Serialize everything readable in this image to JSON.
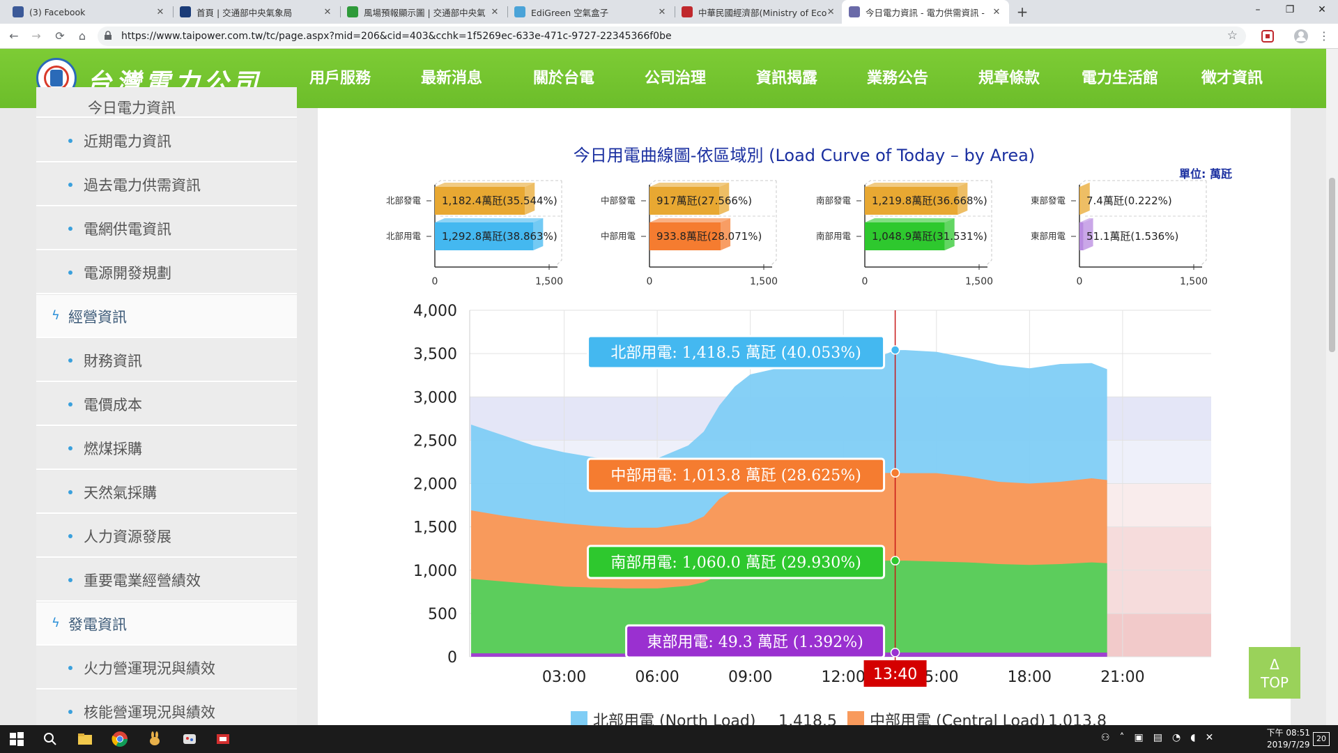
{
  "browser": {
    "tabs": [
      {
        "title": "(3) Facebook",
        "favicon_color": "#3b5998"
      },
      {
        "title": "首頁 | 交通部中央氣象局",
        "favicon_color": "#1a3b78"
      },
      {
        "title": "風場預報顯示圖 | 交通部中央氣",
        "favicon_color": "#2e9a3a"
      },
      {
        "title": "EdiGreen 空氣盒子",
        "favicon_color": "#4aa3d8"
      },
      {
        "title": "中華民國經濟部(Ministry of Eco",
        "favicon_color": "#c0282d"
      },
      {
        "title": "今日電力資訊 - 電力供需資訊 -",
        "favicon_color": "#6a6aa8"
      }
    ],
    "active_tab": 5,
    "url": "https://www.taipower.com.tw/tc/page.aspx?mid=206&cid=403&cchk=1f5269ec-633e-471c-9727-22345366f0be"
  },
  "site": {
    "logo_text": "台灣電力公司",
    "nav": [
      "用戶服務",
      "最新消息",
      "關於台電",
      "公司治理",
      "資訊揭露",
      "業務公告",
      "規章條款",
      "電力生活館",
      "徵才資訊"
    ],
    "nav_active": 4
  },
  "sidebar": {
    "partial_top": "今日電力資訊",
    "items": [
      {
        "type": "item",
        "label": "近期電力資訊"
      },
      {
        "type": "item",
        "label": "過去電力供需資訊"
      },
      {
        "type": "item",
        "label": "電網供電資訊"
      },
      {
        "type": "item",
        "label": "電源開發規劃"
      },
      {
        "type": "head",
        "label": "經營資訊"
      },
      {
        "type": "item",
        "label": "財務資訊"
      },
      {
        "type": "item",
        "label": "電價成本"
      },
      {
        "type": "item",
        "label": "燃煤採購"
      },
      {
        "type": "item",
        "label": "天然氣採購"
      },
      {
        "type": "item",
        "label": "人力資源發展"
      },
      {
        "type": "item",
        "label": "重要電業經營績效"
      },
      {
        "type": "head",
        "label": "發電資訊"
      },
      {
        "type": "item",
        "label": "火力營運現況與績效"
      },
      {
        "type": "item",
        "label": "核能營運現況與績效"
      }
    ]
  },
  "chart_data": [
    {
      "type": "bar",
      "region": "北部",
      "categories": [
        "北部發電",
        "北部用電"
      ],
      "values": [
        1182.4,
        1292.8
      ],
      "labels": [
        "1,182.4萬瓩(35.544%)",
        "1,292.8萬瓩(38.863%)"
      ],
      "colors": [
        "#e8a832",
        "#44b8f0"
      ],
      "xlim": [
        0,
        1500
      ],
      "ticks": [
        "0",
        "1,500"
      ]
    },
    {
      "type": "bar",
      "region": "中部",
      "categories": [
        "中部發電",
        "中部用電"
      ],
      "values": [
        917,
        933.8
      ],
      "labels": [
        "917萬瓩(27.566%)",
        "933.8萬瓩(28.071%)"
      ],
      "colors": [
        "#e8a832",
        "#f57c30"
      ],
      "xlim": [
        0,
        1500
      ],
      "ticks": [
        "0",
        "1,500"
      ]
    },
    {
      "type": "bar",
      "region": "南部",
      "categories": [
        "南部發電",
        "南部用電"
      ],
      "values": [
        1219.8,
        1048.9
      ],
      "labels": [
        "1,219.8萬瓩(36.668%)",
        "1,048.9萬瓩(31.531%)"
      ],
      "colors": [
        "#e8a832",
        "#2ec82e"
      ],
      "xlim": [
        0,
        1500
      ],
      "ticks": [
        "0",
        "1,500"
      ]
    },
    {
      "type": "bar",
      "region": "東部",
      "categories": [
        "東部發電",
        "東部用電"
      ],
      "values": [
        7.4,
        51.1
      ],
      "labels": [
        "7.4萬瓩(0.222%)",
        "51.1萬瓩(1.536%)"
      ],
      "colors": [
        "#e8a832",
        "#b88ae0"
      ],
      "xlim": [
        0,
        1500
      ],
      "ticks": [
        "0",
        "1,500"
      ]
    },
    {
      "type": "area",
      "title": "今日用電曲線圖-依區域別 (Load Curve of Today – by Area)",
      "unit": "單位: 萬瓩",
      "ylim": [
        0,
        4000
      ],
      "yticks": [
        "0",
        "500",
        "1,000",
        "1,500",
        "2,000",
        "2,500",
        "3,000",
        "3,500",
        "4,000"
      ],
      "xticks": [
        "03:00",
        "06:00",
        "09:00",
        "12:00",
        "15:00",
        "18:00",
        "21:00"
      ],
      "cursor_time": "13:40",
      "x": [
        0,
        1,
        2,
        3,
        4,
        5,
        6,
        7,
        7.5,
        8,
        8.5,
        9,
        10,
        11,
        12,
        13,
        13.67,
        14,
        15,
        16,
        17,
        18,
        19,
        20,
        20.5
      ],
      "series": [
        {
          "name": "北部用電 (North Load)",
          "color": "#7fcdf5",
          "stack_top": [
            2680,
            2560,
            2440,
            2360,
            2300,
            2280,
            2290,
            2440,
            2600,
            2900,
            3120,
            3260,
            3340,
            3370,
            3390,
            3440,
            3540,
            3540,
            3520,
            3450,
            3370,
            3330,
            3380,
            3390,
            3320
          ]
        },
        {
          "name": "中部用電 (Central Load)",
          "color": "#f89a5c",
          "stack_top": [
            1690,
            1630,
            1580,
            1540,
            1510,
            1490,
            1490,
            1540,
            1620,
            1820,
            1940,
            2000,
            2050,
            2080,
            2110,
            2120,
            2123,
            2120,
            2120,
            2080,
            2020,
            2000,
            2020,
            2060,
            2040
          ]
        },
        {
          "name": "南部用電",
          "color": "#5ccd5c",
          "stack_top": [
            900,
            870,
            840,
            810,
            800,
            790,
            790,
            820,
            860,
            940,
            1000,
            1040,
            1070,
            1090,
            1100,
            1110,
            1109,
            1110,
            1100,
            1090,
            1070,
            1060,
            1070,
            1090,
            1080
          ]
        },
        {
          "name": "東部用電",
          "color": "#a040d0",
          "stack_top": [
            40,
            40,
            38,
            38,
            37,
            37,
            38,
            40,
            42,
            45,
            47,
            48,
            49,
            49,
            49,
            49,
            49,
            49,
            49,
            48,
            47,
            47,
            47,
            48,
            48
          ]
        }
      ],
      "tooltips": [
        {
          "text": "北部用電: 1,418.5 萬瓩 (40.053%)",
          "value": 3541.6,
          "color": "#44b8f0"
        },
        {
          "text": "中部用電: 1,013.8 萬瓩 (28.625%)",
          "value": 2123.1,
          "color": "#f57c30"
        },
        {
          "text": "南部用電: 1,060.0 萬瓩 (29.930%)",
          "value": 1109.3,
          "color": "#2ec82e"
        },
        {
          "text": "東部用電: 49.3 萬瓩 (1.392%)",
          "value": 49.3,
          "color": "#9a30d0"
        }
      ],
      "legend": [
        {
          "label": "北部用電 (North Load)",
          "value": "1,418.5",
          "color": "#7fcdf5"
        },
        {
          "label": "中部用電 (Central Load)",
          "value": "1,013.8",
          "color": "#f89a5c"
        }
      ]
    }
  ],
  "ui": {
    "top_button_arrow": "Δ",
    "top_button_label": "TOP",
    "clock_time": "下午 08:51",
    "clock_date": "2019/7/29",
    "notif_count": "20"
  }
}
